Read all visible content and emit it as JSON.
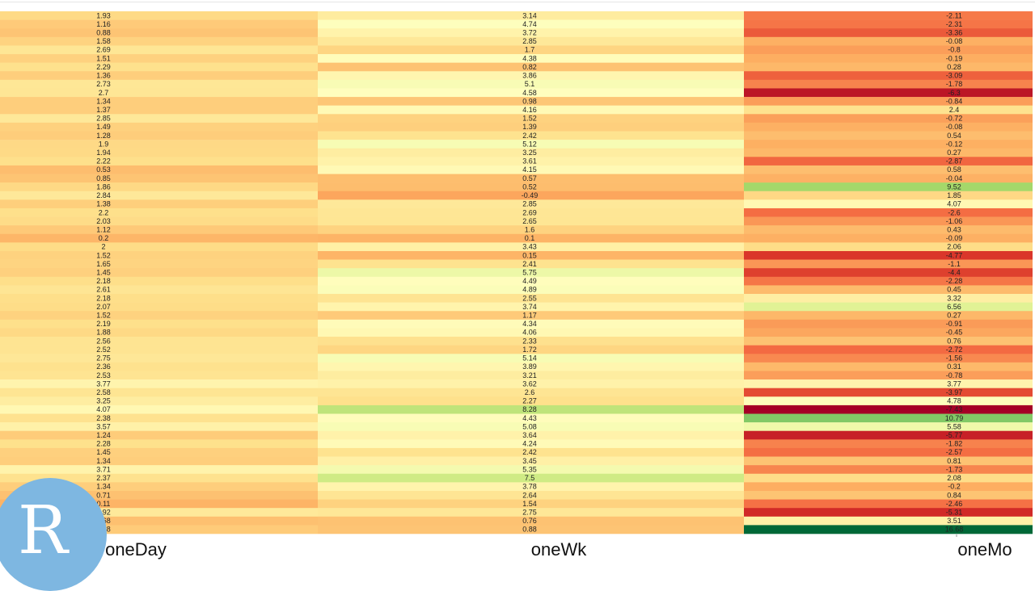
{
  "chart_data": {
    "type": "heatmap",
    "columns": [
      "oneDay",
      "oneWk",
      "oneMo"
    ],
    "color_scale": "RdYlGn diverging (red = low, green = high)",
    "grid": false,
    "values": {
      "oneDay": [
        1.93,
        1.16,
        0.88,
        1.58,
        2.69,
        1.51,
        2.29,
        1.36,
        2.73,
        2.7,
        1.34,
        1.37,
        2.85,
        1.49,
        1.28,
        1.9,
        1.94,
        2.22,
        0.53,
        0.85,
        1.86,
        2.84,
        1.38,
        2.2,
        2.03,
        1.12,
        0.2,
        2,
        1.52,
        1.65,
        1.45,
        2.18,
        2.61,
        2.18,
        2.07,
        1.52,
        2.19,
        1.88,
        2.56,
        2.52,
        2.75,
        2.36,
        2.53,
        3.77,
        2.58,
        3.25,
        4.07,
        2.38,
        3.57,
        1.24,
        2.28,
        1.45,
        1.34,
        3.71,
        2.37,
        1.34,
        0.71,
        0.11,
        2.92,
        0.68,
        1.18
      ],
      "oneWk": [
        3.14,
        4.74,
        3.72,
        2.85,
        1.7,
        4.38,
        0.82,
        3.86,
        5.1,
        4.58,
        0.98,
        4.16,
        1.52,
        1.39,
        2.42,
        5.12,
        3.25,
        3.61,
        4.15,
        0.57,
        0.52,
        -0.49,
        2.85,
        2.69,
        2.65,
        1.6,
        0.1,
        3.43,
        0.15,
        2.41,
        5.75,
        4.49,
        4.89,
        2.55,
        3.74,
        1.17,
        4.34,
        4.06,
        2.33,
        1.72,
        5.14,
        3.89,
        3.21,
        3.62,
        2.6,
        2.27,
        8.28,
        4.43,
        5.08,
        3.64,
        4.24,
        2.42,
        3.45,
        5.35,
        7.5,
        3.78,
        2.64,
        1.54,
        2.75,
        0.76,
        0.88
      ],
      "oneMo": [
        -2.11,
        -2.31,
        -3.36,
        -0.08,
        -0.8,
        -0.19,
        0.28,
        -3.09,
        -1.78,
        -6.3,
        -0.84,
        2.4,
        -0.72,
        -0.08,
        0.54,
        -0.12,
        0.27,
        -2.87,
        0.58,
        -0.04,
        9.52,
        1.85,
        4.07,
        -2.6,
        -1.06,
        0.43,
        -0.09,
        2.06,
        -4.77,
        -1.1,
        -4.4,
        -2.28,
        0.45,
        3.32,
        6.56,
        0.27,
        -0.91,
        -0.45,
        0.76,
        -2.72,
        -1.56,
        0.31,
        -0.78,
        3.77,
        -3.97,
        4.78,
        -7.43,
        10.79,
        5.58,
        -5.77,
        -1.82,
        -2.57,
        0.81,
        -1.73,
        2.08,
        -0.2,
        0.84,
        -2.46,
        -5.31,
        3.51,
        16.68
      ]
    }
  },
  "logo": {
    "letter": "R"
  }
}
